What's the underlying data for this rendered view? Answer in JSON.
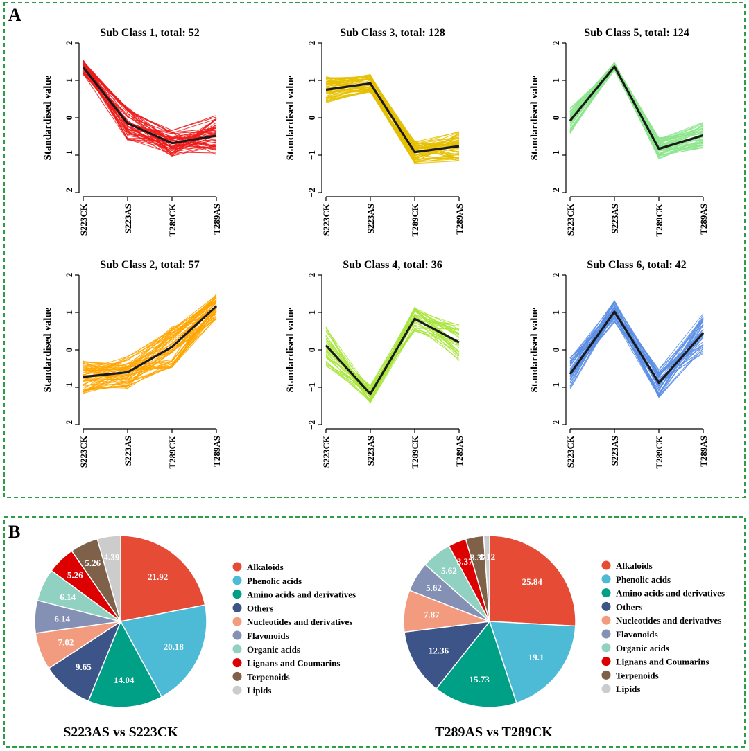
{
  "figure": {
    "panel_a_label": "A",
    "panel_b_label": "B",
    "frame_color": "#2e9e46"
  },
  "chart_data": [
    {
      "type": "line",
      "title": "Sub Class 1, total: 52",
      "ylabel": "Standardised value",
      "x": [
        "S223CK",
        "S223AS",
        "T289CK",
        "T289AS"
      ],
      "ylim": [
        -2,
        2
      ],
      "yticks": [
        -2,
        -1,
        0,
        1,
        2
      ],
      "color": "#ee1c1c",
      "profile_count": 52,
      "mean": [
        1.35,
        -0.15,
        -0.68,
        -0.48
      ],
      "spread": [
        0.2,
        0.45,
        0.35,
        0.55
      ]
    },
    {
      "type": "line",
      "title": "Sub Class 3, total: 128",
      "ylabel": "Standardised value",
      "x": [
        "S223CK",
        "S223AS",
        "T289CK",
        "T289AS"
      ],
      "ylim": [
        -2,
        2
      ],
      "yticks": [
        -2,
        -1,
        0,
        1,
        2
      ],
      "color": "#e6c000",
      "profile_count": 128,
      "mean": [
        0.75,
        0.92,
        -0.92,
        -0.76
      ],
      "spread": [
        0.35,
        0.25,
        0.3,
        0.4
      ]
    },
    {
      "type": "line",
      "title": "Sub Class 5, total: 124",
      "ylabel": "Standardised value",
      "x": [
        "S223CK",
        "S223AS",
        "T289CK",
        "T289AS"
      ],
      "ylim": [
        -2,
        2
      ],
      "yticks": [
        -2,
        -1,
        0,
        1,
        2
      ],
      "color": "#8ee68e",
      "profile_count": 124,
      "mean": [
        -0.08,
        1.37,
        -0.83,
        -0.47
      ],
      "spread": [
        0.35,
        0.12,
        0.3,
        0.35
      ]
    },
    {
      "type": "line",
      "title": "Sub Class 2, total: 57",
      "ylabel": "Standardised value",
      "x": [
        "S223CK",
        "S223AS",
        "T289CK",
        "T289AS"
      ],
      "ylim": [
        -2,
        2
      ],
      "yticks": [
        -2,
        -1,
        0,
        1,
        2
      ],
      "color": "#ffa500",
      "profile_count": 57,
      "mean": [
        -0.72,
        -0.6,
        0.08,
        1.17
      ],
      "spread": [
        0.45,
        0.45,
        0.55,
        0.35
      ]
    },
    {
      "type": "line",
      "title": "Sub Class 4, total: 36",
      "ylabel": "Standardised value",
      "x": [
        "S223CK",
        "S223AS",
        "T289CK",
        "T289AS"
      ],
      "ylim": [
        -2,
        2
      ],
      "yticks": [
        -2,
        -1,
        0,
        1,
        2
      ],
      "color": "#a8e63c",
      "profile_count": 36,
      "mean": [
        0.12,
        -1.18,
        0.83,
        0.2
      ],
      "spread": [
        0.55,
        0.25,
        0.35,
        0.5
      ]
    },
    {
      "type": "line",
      "title": "Sub Class 6, total: 42",
      "ylabel": "Standardised value",
      "x": [
        "S223CK",
        "S223AS",
        "T289CK",
        "T289AS"
      ],
      "ylim": [
        -2,
        2
      ],
      "yticks": [
        -2,
        -1,
        0,
        1,
        2
      ],
      "color": "#5b8ee6",
      "profile_count": 42,
      "mean": [
        -0.65,
        1.02,
        -0.88,
        0.45
      ],
      "spread": [
        0.45,
        0.3,
        0.4,
        0.55
      ]
    },
    {
      "type": "pie",
      "title": "S223AS vs S223CK",
      "categories": [
        "Alkaloids",
        "Phenolic acids",
        "Amino acids and derivatives",
        "Others",
        "Nucleotides and derivatives",
        "Flavonoids",
        "Organic acids",
        "Lignans and Coumarins",
        "Terpenoids",
        "Lipids"
      ],
      "values": [
        21.92,
        20.18,
        14.04,
        9.65,
        7.02,
        6.14,
        6.14,
        5.26,
        5.26,
        4.39
      ],
      "colors": [
        "#e64b35",
        "#4dbbd5",
        "#00a087",
        "#3c5488",
        "#f39b7f",
        "#8491b4",
        "#91d1c2",
        "#dc0000",
        "#7e6148",
        "#cccccc"
      ]
    },
    {
      "type": "pie",
      "title": "T289AS vs T289CK",
      "categories": [
        "Alkaloids",
        "Phenolic acids",
        "Amino acids and derivatives",
        "Others",
        "Nucleotides and derivatives",
        "Flavonoids",
        "Organic acids",
        "Lignans and Coumarins",
        "Terpenoids",
        "Lipids"
      ],
      "values": [
        25.84,
        19.1,
        15.73,
        12.36,
        7.87,
        5.62,
        5.62,
        3.37,
        3.37,
        1.12
      ],
      "colors": [
        "#e64b35",
        "#4dbbd5",
        "#00a087",
        "#3c5488",
        "#f39b7f",
        "#8491b4",
        "#91d1c2",
        "#dc0000",
        "#7e6148",
        "#cccccc"
      ]
    }
  ]
}
